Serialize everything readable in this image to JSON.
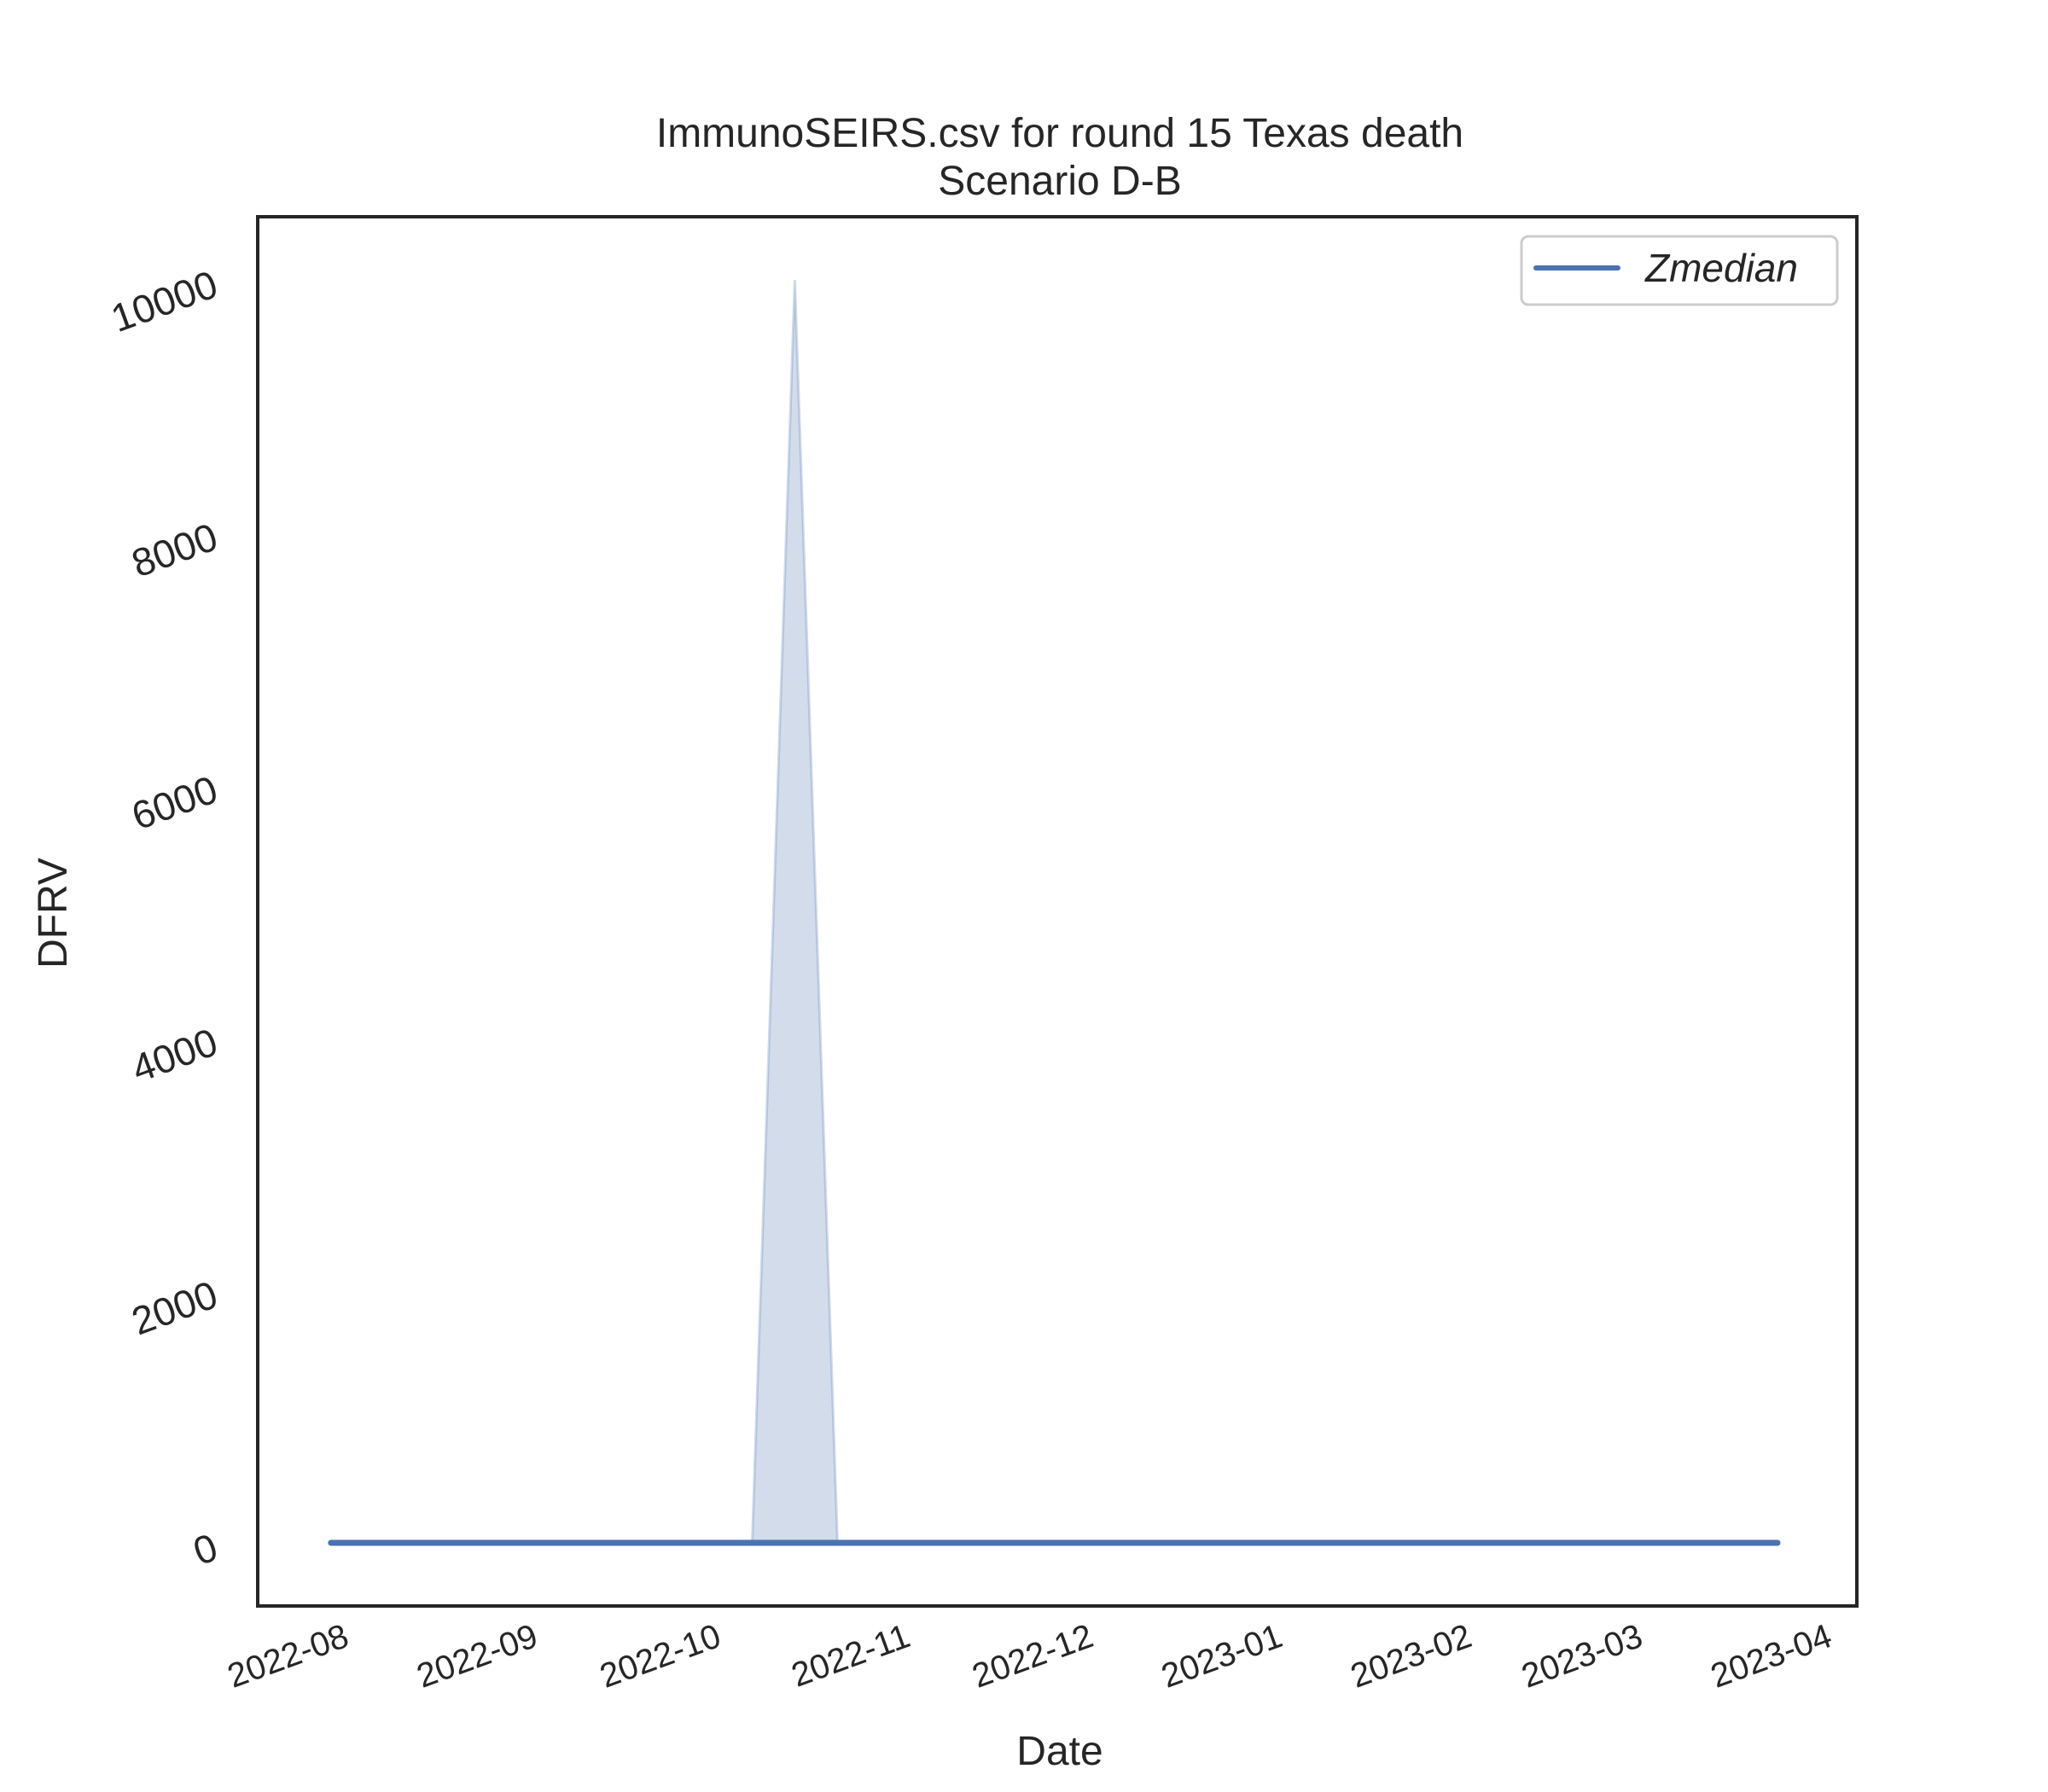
{
  "chart_data": {
    "type": "line",
    "title": "ImmunoSEIRS.csv for round 15 Texas death",
    "subtitle": "Scenario D-B",
    "xlabel": "Date",
    "ylabel": "DFRV",
    "x_ticks": [
      "2022-08",
      "2022-09",
      "2022-10",
      "2022-11",
      "2022-12",
      "2023-01",
      "2023-02",
      "2023-03",
      "2023-04"
    ],
    "y_ticks": [
      "0",
      "2000",
      "4000",
      "6000",
      "8000",
      "10000"
    ],
    "xlim": [
      "2022-07-19",
      "2023-04-07"
    ],
    "ylim": [
      -500,
      10500
    ],
    "grid": false,
    "legend": {
      "position": "upper right",
      "entries": [
        "Zmedian"
      ]
    },
    "series": [
      {
        "name": "Zmedian",
        "color": "#4c72b0",
        "x": [
          "2022-07-31",
          "2023-03-25"
        ],
        "y": [
          0,
          0
        ]
      }
    ],
    "band": {
      "color": "#4c72b0",
      "x": [
        "2022-07-31",
        "2022-10-08",
        "2022-10-15",
        "2022-10-22",
        "2023-03-25"
      ],
      "lower": [
        0,
        0,
        0,
        0,
        0
      ],
      "upper": [
        0,
        0,
        10000,
        0,
        0
      ]
    }
  }
}
